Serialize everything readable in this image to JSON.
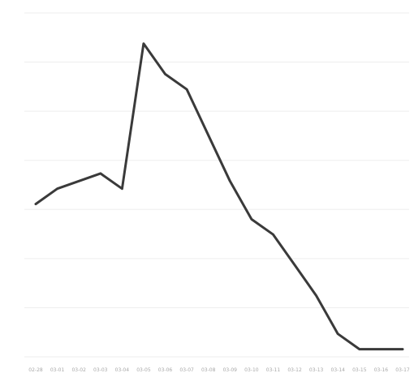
{
  "chart_data": {
    "type": "line",
    "title": "",
    "xlabel": "",
    "ylabel": "",
    "grid": true,
    "colors": {
      "line": "#3a3a3a",
      "grid": "#ededed",
      "text": "#9a9a9a"
    },
    "y_ticks": [
      "",
      "",
      "",
      "",
      "",
      "",
      "",
      ""
    ],
    "categories": [
      "02-28",
      "03-01",
      "03-02",
      "03-03",
      "03-04",
      "03-05",
      "03-06",
      "03-07",
      "03-08",
      "03-09",
      "03-10",
      "03-11",
      "03-12",
      "03-13",
      "03-14",
      "03-15",
      "03-16",
      "03-17"
    ],
    "values": [
      20,
      22,
      23,
      24,
      22,
      41,
      37,
      35,
      29,
      23,
      18,
      16,
      12,
      8,
      3,
      1,
      1,
      1
    ],
    "data_labels": [
      "",
      "",
      "",
      "",
      "",
      "",
      "",
      "",
      "",
      "",
      "",
      "",
      "",
      "",
      "",
      "",
      "",
      ""
    ]
  }
}
